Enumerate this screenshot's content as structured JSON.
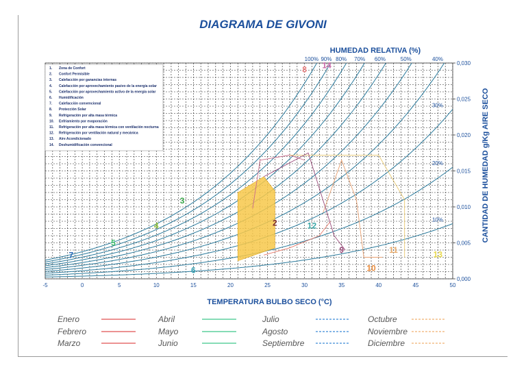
{
  "title": "DIAGRAMA DE GIVONI",
  "chart_data": {
    "type": "line",
    "title": "DIAGRAMA DE GIVONI",
    "xlabel": "TEMPERATURA BULBO SECO (°C)",
    "ylabel": "CANTIDAD DE HUMEDAD g/Kg AIRE SECO",
    "top_label": "HUMEDAD RELATIVA (%)",
    "xlim": [
      -5,
      50
    ],
    "ylim": [
      0,
      0.03
    ],
    "x_ticks": [
      "-5",
      "0",
      "5",
      "10",
      "15",
      "20",
      "25",
      "30",
      "35",
      "40",
      "45",
      "50"
    ],
    "y_ticks": [
      "0,000",
      "0,005",
      "0,010",
      "0,015",
      "0,020",
      "0,025",
      "0,030"
    ],
    "grid": true,
    "rh_series": [
      {
        "rh": 100,
        "label": "100%"
      },
      {
        "rh": 90,
        "label": "90%"
      },
      {
        "rh": 80,
        "label": "80%"
      },
      {
        "rh": 70,
        "label": "70%"
      },
      {
        "rh": 60,
        "label": "60%"
      },
      {
        "rh": 50,
        "label": "50%"
      },
      {
        "rh": 40,
        "label": "40%"
      },
      {
        "rh": 30,
        "label": "30%"
      },
      {
        "rh": 20,
        "label": "20%"
      },
      {
        "rh": 10,
        "label": "10%"
      }
    ],
    "zones": [
      {
        "num": "1",
        "label": "Zona de Confort"
      },
      {
        "num": "2",
        "label": "Confort Permisible"
      },
      {
        "num": "3",
        "label": "Calefacción por ganancias internas"
      },
      {
        "num": "4",
        "label": "Calefacción por aprovechamiento pasivo de la energía solar"
      },
      {
        "num": "5",
        "label": "Calefacción por aprovechamiento activo de la energía solar"
      },
      {
        "num": "6",
        "label": "Humidificación"
      },
      {
        "num": "7",
        "label": "Calefacción convencional"
      },
      {
        "num": "8",
        "label": "Protección Solar"
      },
      {
        "num": "9",
        "label": "Refrigeración por alta masa térmica"
      },
      {
        "num": "10",
        "label": "Enfriamiento por evaporación"
      },
      {
        "num": "11",
        "label": "Refrigeración por alta masa térmica con ventilación nocturna"
      },
      {
        "num": "12",
        "label": "Refrigeración por ventilación natural y mecánica"
      },
      {
        "num": "13",
        "label": "Aire Acondicionado"
      },
      {
        "num": "14",
        "label": "Deshumidificación convencional"
      }
    ],
    "zone_markers": [
      {
        "text": "3",
        "x": 13.5,
        "y": 0.0105,
        "color": "#3aa64a"
      },
      {
        "text": "4",
        "x": 10,
        "y": 0.007,
        "color": "#8bbf3c"
      },
      {
        "text": "5",
        "x": 4.2,
        "y": 0.0046,
        "color": "#3fbf6a"
      },
      {
        "text": "7",
        "x": -1.5,
        "y": 0.0029,
        "color": "#2a6ab8"
      },
      {
        "text": "6",
        "x": 15,
        "y": 0.0008,
        "color": "#3aa6b8"
      },
      {
        "text": "2",
        "x": 26,
        "y": 0.0074,
        "color": "#7a2a2a"
      },
      {
        "text": "12",
        "x": 31,
        "y": 0.007,
        "color": "#3aa6a6"
      },
      {
        "text": "9",
        "x": 35,
        "y": 0.0036,
        "color": "#9a4a7a"
      },
      {
        "text": "10",
        "x": 39,
        "y": 0.0011,
        "color": "#e88a3a"
      },
      {
        "text": "11",
        "x": 42,
        "y": 0.0036,
        "color": "#e8aa6a"
      },
      {
        "text": "13",
        "x": 48,
        "y": 0.003,
        "color": "#e8d84a"
      },
      {
        "text": "8",
        "x": 30,
        "y": 0.0287,
        "color": "#e87a7a"
      },
      {
        "text": "14",
        "x": 33,
        "y": 0.0293,
        "color": "#c86aa8"
      }
    ],
    "comfort_zone": {
      "color": "#f7c84a",
      "points": [
        [
          21,
          0.0025
        ],
        [
          21,
          0.012
        ],
        [
          24.5,
          0.0142
        ],
        [
          26,
          0.0122
        ],
        [
          26,
          0.0043
        ]
      ]
    },
    "zone_outlines": [
      {
        "color": "#c86a8a",
        "points": [
          [
            23,
            0.0098
          ],
          [
            24,
            0.0165
          ],
          [
            28,
            0.0172
          ],
          [
            30,
            0.0165
          ]
        ]
      },
      {
        "color": "#e87a6a",
        "points": [
          [
            24.5,
            0.0033
          ],
          [
            28,
            0.0043
          ],
          [
            32,
            0.006
          ],
          [
            33.5,
            0.008
          ]
        ]
      },
      {
        "color": "#e8a070",
        "points": [
          [
            32.5,
            0.0092
          ],
          [
            35,
            0.0165
          ],
          [
            37,
            0.011
          ],
          [
            38,
            0.003
          ],
          [
            40.5,
            0.003
          ]
        ]
      },
      {
        "color": "#e8c870",
        "points": [
          [
            28,
            0.0172
          ],
          [
            40,
            0.0172
          ],
          [
            43.5,
            0.011
          ],
          [
            43.5,
            0.003
          ]
        ]
      },
      {
        "color": "#9a4a7a",
        "points": [
          [
            24.5,
            0.0142
          ],
          [
            30.5,
            0.0175
          ],
          [
            34,
            0.006
          ],
          [
            35.5,
            0.004
          ]
        ]
      }
    ],
    "legend": [
      {
        "label": "Enero",
        "color": "#e05050",
        "dash": false
      },
      {
        "label": "Febrero",
        "color": "#e05050",
        "dash": false
      },
      {
        "label": "Marzo",
        "color": "#e05050",
        "dash": false
      },
      {
        "label": "Abril",
        "color": "#3cc88a",
        "dash": false
      },
      {
        "label": "Mayo",
        "color": "#3cc88a",
        "dash": false
      },
      {
        "label": "Junio",
        "color": "#3cc88a",
        "dash": false
      },
      {
        "label": "Julio",
        "color": "#3a8ad8",
        "dash": true
      },
      {
        "label": "Agosto",
        "color": "#3a8ad8",
        "dash": true
      },
      {
        "label": "Septiembre",
        "color": "#3a8ad8",
        "dash": true
      },
      {
        "label": "Octubre",
        "color": "#f0b070",
        "dash": true
      },
      {
        "label": "Noviembre",
        "color": "#f0b070",
        "dash": true
      },
      {
        "label": "Diciembre",
        "color": "#f0b070",
        "dash": true
      }
    ]
  }
}
